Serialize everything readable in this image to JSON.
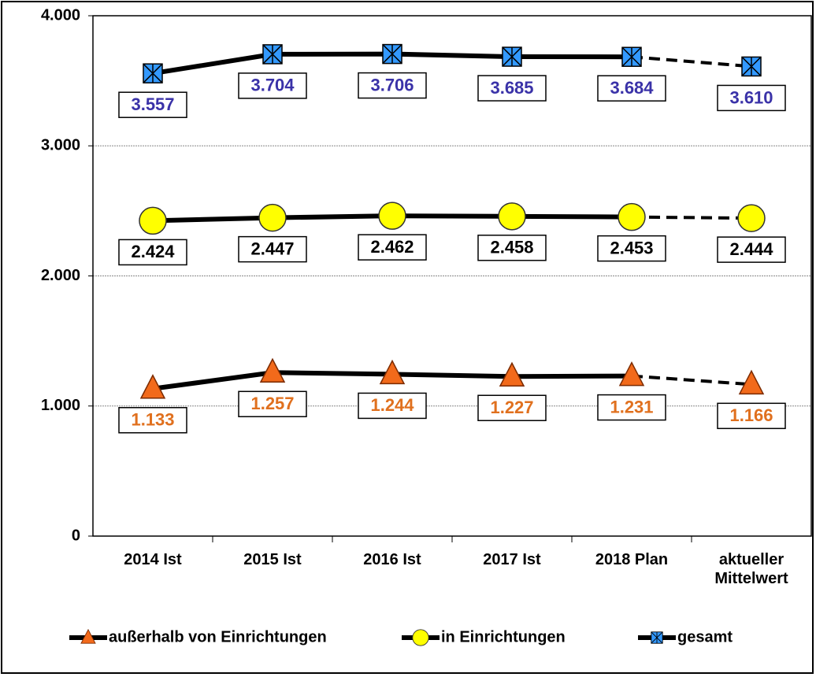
{
  "chart_data": {
    "type": "line",
    "categories": [
      "2014 Ist",
      "2015 Ist",
      "2016 Ist",
      "2017 Ist",
      "2018 Plan",
      "aktueller Mittelwert"
    ],
    "ylim": [
      0,
      4000
    ],
    "yticks": [
      0,
      {
        "value": 1000,
        "label": "1.000"
      },
      {
        "value": 2000,
        "label": "2.000"
      },
      {
        "value": 3000,
        "label": "3.000"
      },
      {
        "value": 4000,
        "label": "4.000"
      }
    ],
    "grid": true,
    "last_segment_dashed": true,
    "legend": "bottom",
    "series": [
      {
        "name": "außerhalb von Einrichtungen",
        "color": "#f26a1b",
        "label_color": "#e0701e",
        "marker": "triangle",
        "values": [
          1133,
          1257,
          1244,
          1227,
          1231,
          1166
        ],
        "value_labels": [
          "1.133",
          "1.257",
          "1.244",
          "1.227",
          "1.231",
          "1.166"
        ]
      },
      {
        "name": "in Einrichtungen",
        "color": "#ffff00",
        "label_color": "#000000",
        "marker": "circle",
        "values": [
          2424,
          2447,
          2462,
          2458,
          2453,
          2444
        ],
        "value_labels": [
          "2.424",
          "2.447",
          "2.462",
          "2.458",
          "2.453",
          "2.444"
        ]
      },
      {
        "name": "gesamt",
        "color": "#3399ff",
        "label_color": "#3a32a8",
        "marker": "asterisk-square",
        "values": [
          3557,
          3704,
          3706,
          3685,
          3684,
          3610
        ],
        "value_labels": [
          "3.557",
          "3.704",
          "3.706",
          "3.685",
          "3.684",
          "3.610"
        ]
      }
    ]
  }
}
